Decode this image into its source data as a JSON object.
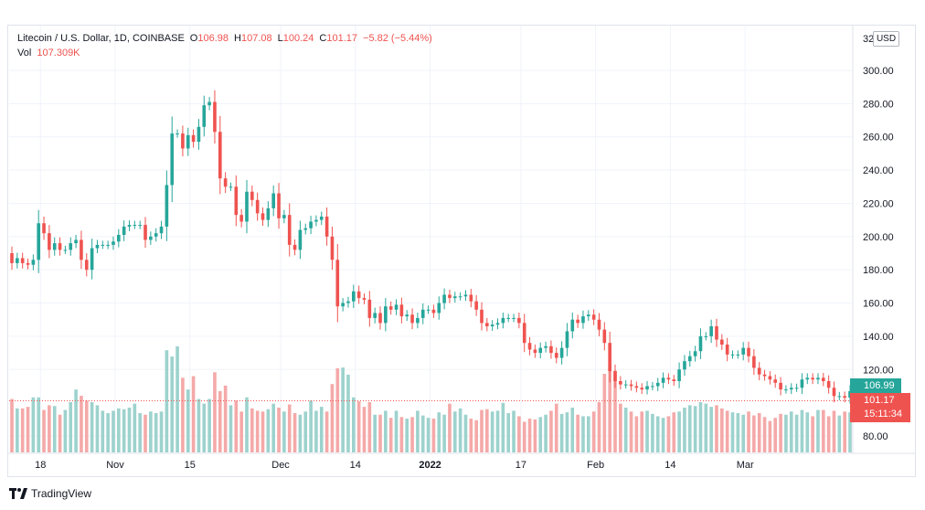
{
  "header": {
    "symbol": "Litecoin / U.S. Dollar, 1D, COINBASE",
    "open_label": "O",
    "open": "106.98",
    "high_label": "H",
    "high": "107.08",
    "low_label": "L",
    "low": "100.24",
    "close_label": "C",
    "close": "101.17",
    "change": "−5.82 (−5.44%)",
    "vol_label": "Vol",
    "vol": "107.309K",
    "currency_button": "USD",
    "axis_top_partial": "32"
  },
  "badges": {
    "green_value": "106.99",
    "red_value": "101.17",
    "red_countdown": "15:11:34"
  },
  "footer": {
    "brand": "TradingView"
  },
  "colors": {
    "up": "#26a69a",
    "down": "#ef5350",
    "vol_up": "#9dd2cd",
    "vol_down": "#f4a9a8",
    "grid": "#f0f3fa"
  },
  "chart_data": {
    "type": "candlestick",
    "title": "Litecoin / U.S. Dollar, 1D, COINBASE",
    "y_ticks": [
      300,
      280,
      260,
      240,
      220,
      200,
      180,
      160,
      140,
      120,
      80
    ],
    "y_tick_labels": [
      "300.00",
      "280.00",
      "260.00",
      "240.00",
      "220.00",
      "200.00",
      "180.00",
      "160.00",
      "140.00",
      "120.00",
      "80.00"
    ],
    "x_tick_labels": [
      "18",
      "Nov",
      "15",
      "Dec",
      "14",
      "2022",
      "17",
      "Feb",
      "14",
      "Mar"
    ],
    "ylim": [
      76,
      322
    ],
    "close": [
      184,
      187,
      184,
      183,
      186,
      208,
      202,
      192,
      196,
      192,
      192,
      196,
      198,
      186,
      180,
      193,
      195,
      195,
      195,
      197,
      201,
      206,
      207,
      207,
      207,
      198,
      200,
      202,
      206,
      231,
      262,
      262,
      253,
      261,
      257,
      266,
      279,
      281,
      263,
      235,
      230,
      230,
      213,
      209,
      227,
      222,
      214,
      210,
      217,
      226,
      211,
      213,
      195,
      192,
      204,
      205,
      209,
      210,
      212,
      200,
      186,
      158,
      160,
      161,
      167,
      163,
      162,
      151,
      154,
      148,
      158,
      156,
      159,
      152,
      153,
      148,
      151,
      156,
      156,
      154,
      160,
      165,
      163,
      164,
      164,
      165,
      161,
      156,
      148,
      146,
      147,
      148,
      151,
      151,
      151,
      148,
      136,
      132,
      130,
      133,
      134,
      130,
      127,
      133,
      143,
      150,
      148,
      152,
      153,
      150,
      144,
      136,
      119,
      113,
      111,
      111,
      110,
      109,
      108,
      110,
      110,
      112,
      115,
      114,
      113,
      120,
      125,
      128,
      131,
      140,
      140,
      146,
      138,
      135,
      129,
      129,
      129,
      133,
      128,
      121,
      117,
      116,
      114,
      112,
      108,
      108,
      109,
      109,
      114,
      115,
      114,
      115,
      113,
      109,
      104,
      104,
      103,
      107
    ],
    "volume_k": [
      68,
      56,
      56,
      58,
      70,
      70,
      54,
      60,
      59,
      48,
      54,
      64,
      80,
      72,
      66,
      64,
      60,
      53,
      50,
      53,
      56,
      55,
      57,
      62,
      50,
      48,
      52,
      50,
      52,
      130,
      122,
      135,
      95,
      80,
      97,
      68,
      62,
      68,
      102,
      78,
      85,
      60,
      66,
      52,
      70,
      56,
      53,
      52,
      55,
      62,
      57,
      52,
      61,
      50,
      48,
      52,
      66,
      53,
      58,
      52,
      87,
      107,
      108,
      99,
      70,
      65,
      58,
      64,
      48,
      48,
      53,
      44,
      53,
      45,
      43,
      45,
      53,
      47,
      44,
      43,
      51,
      48,
      62,
      52,
      56,
      48,
      43,
      41,
      54,
      55,
      52,
      53,
      63,
      50,
      53,
      46,
      39,
      43,
      42,
      45,
      48,
      53,
      62,
      49,
      51,
      57,
      48,
      46,
      46,
      52,
      64,
      100,
      108,
      104,
      62,
      57,
      52,
      46,
      52,
      53,
      49,
      46,
      44,
      46,
      51,
      52,
      57,
      60,
      59,
      64,
      62,
      58,
      60,
      56,
      53,
      51,
      50,
      48,
      52,
      47,
      50,
      45,
      40,
      44,
      49,
      48,
      52,
      48,
      54,
      51,
      46,
      54,
      54,
      46,
      53,
      47,
      52,
      51
    ]
  }
}
